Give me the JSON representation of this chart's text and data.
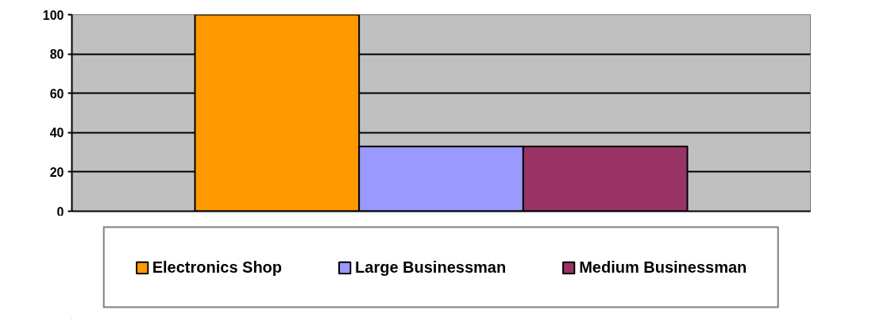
{
  "chart_data": {
    "type": "bar",
    "categories": [
      null
    ],
    "series": [
      {
        "name": "Electronics Shop",
        "color": "#ff9900",
        "values": [
          100
        ]
      },
      {
        "name": "Large Businessman",
        "color": "#9999ff",
        "values": [
          33
        ]
      },
      {
        "name": "Medium Businessman",
        "color": "#993366",
        "values": [
          33
        ]
      }
    ],
    "ylim": [
      0,
      100
    ],
    "yticks": [
      0,
      20,
      40,
      60,
      80,
      100
    ],
    "grid": "y",
    "legend": "bottom"
  }
}
